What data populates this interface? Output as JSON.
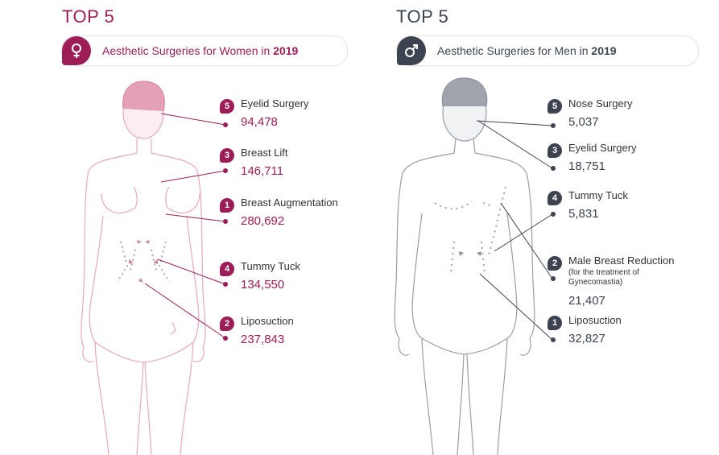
{
  "women": {
    "top_title": "TOP 5",
    "header_text": "Aesthetic Surgeries for Women in ",
    "header_year": "2019",
    "icon": "female-symbol-icon",
    "accent": "#9c1d57",
    "items": [
      {
        "rank": "5",
        "label": "Eyelid Surgery",
        "value": "94,478"
      },
      {
        "rank": "3",
        "label": "Breast Lift",
        "value": "146,711"
      },
      {
        "rank": "1",
        "label": "Breast Augmentation",
        "value": "280,692"
      },
      {
        "rank": "4",
        "label": "Tummy Tuck",
        "value": "134,550"
      },
      {
        "rank": "2",
        "label": "Liposuction",
        "value": "237,843"
      }
    ]
  },
  "men": {
    "top_title": "TOP 5",
    "header_text": "Aesthetic Surgeries for Men in ",
    "header_year": "2019",
    "icon": "male-symbol-icon",
    "accent": "#3d4350",
    "items": [
      {
        "rank": "5",
        "label": "Nose Surgery",
        "value": "5,037"
      },
      {
        "rank": "3",
        "label": "Eyelid Surgery",
        "value": "18,751"
      },
      {
        "rank": "4",
        "label": "Tummy Tuck",
        "value": "5,831"
      },
      {
        "rank": "2",
        "label": "Male Breast Reduction",
        "note": "(for the treatment of\nGynecomastia)",
        "value": "21,407"
      },
      {
        "rank": "1",
        "label": "Liposuction",
        "value": "32,827"
      }
    ]
  }
}
